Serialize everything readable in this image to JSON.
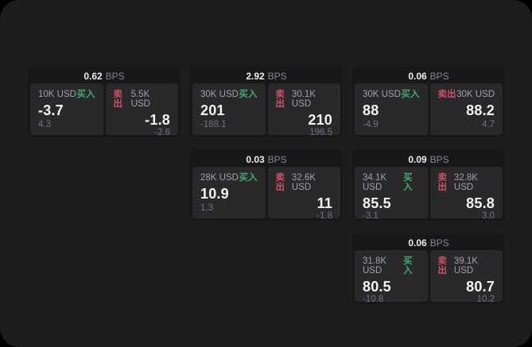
{
  "labels": {
    "bps": "BPS",
    "buy": "买入",
    "sell": "卖出"
  },
  "colors": {
    "page_bg": "#000000",
    "panel_bg": "#1d1d1f",
    "card_bg": "#18181a",
    "cell_bg": "#29292c",
    "buy_green": "#41aa6f",
    "sell_red": "#d15069",
    "value_text": "#f4f4f5",
    "muted_text": "#a2a2a7",
    "delta_text": "#737378"
  },
  "cards": [
    {
      "bps": "0.62",
      "buy": {
        "amount": "10K USD",
        "value": "-3.7",
        "delta": "4.3"
      },
      "sell": {
        "amount": "5.5K USD",
        "value": "-1.8",
        "delta": "-2.6"
      }
    },
    {
      "bps": "2.92",
      "buy": {
        "amount": "30K USD",
        "value": "201",
        "delta": "-188.1"
      },
      "sell": {
        "amount": "30.1K USD",
        "value": "210",
        "delta": "196.5"
      }
    },
    {
      "bps": "0.06",
      "buy": {
        "amount": "30K USD",
        "value": "88",
        "delta": "-4.9"
      },
      "sell": {
        "amount": "30K USD",
        "value": "88.2",
        "delta": "4.7"
      }
    },
    {
      "bps": "0.03",
      "buy": {
        "amount": "28K USD",
        "value": "10.9",
        "delta": "1.3"
      },
      "sell": {
        "amount": "32.6K USD",
        "value": "11",
        "delta": "-1.8"
      }
    },
    {
      "bps": "0.09",
      "buy": {
        "amount": "34.1K USD",
        "value": "85.5",
        "delta": "-3.1"
      },
      "sell": {
        "amount": "32.8K USD",
        "value": "85.8",
        "delta": "3.0"
      }
    },
    {
      "bps": "0.06",
      "buy": {
        "amount": "31.8K USD",
        "value": "80.5",
        "delta": "-10.8"
      },
      "sell": {
        "amount": "39.1K USD",
        "value": "80.7",
        "delta": "10.2"
      }
    }
  ]
}
